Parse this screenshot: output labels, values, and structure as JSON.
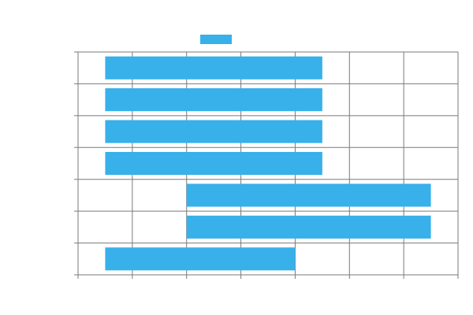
{
  "chart_data": {
    "type": "bar",
    "orientation": "horizontal",
    "stacked": true,
    "title": "",
    "xlabel": "",
    "ylabel": "",
    "categories": [
      "",
      "",
      "",
      "",
      "",
      "",
      ""
    ],
    "xlim": [
      0,
      7
    ],
    "grid": true,
    "legend": {
      "placement": "top-center",
      "entries": [
        {
          "name": "",
          "color": "#38b0ea"
        }
      ]
    },
    "series": [
      {
        "name": "",
        "color": "#38b0ea",
        "ranges": [
          [
            0.5,
            4.5
          ],
          [
            0.5,
            4.5
          ],
          [
            0.5,
            4.5
          ],
          [
            0.5,
            4.5
          ],
          [
            2.0,
            6.5
          ],
          [
            2.0,
            6.5
          ],
          [
            0.5,
            4.0
          ]
        ]
      }
    ]
  }
}
